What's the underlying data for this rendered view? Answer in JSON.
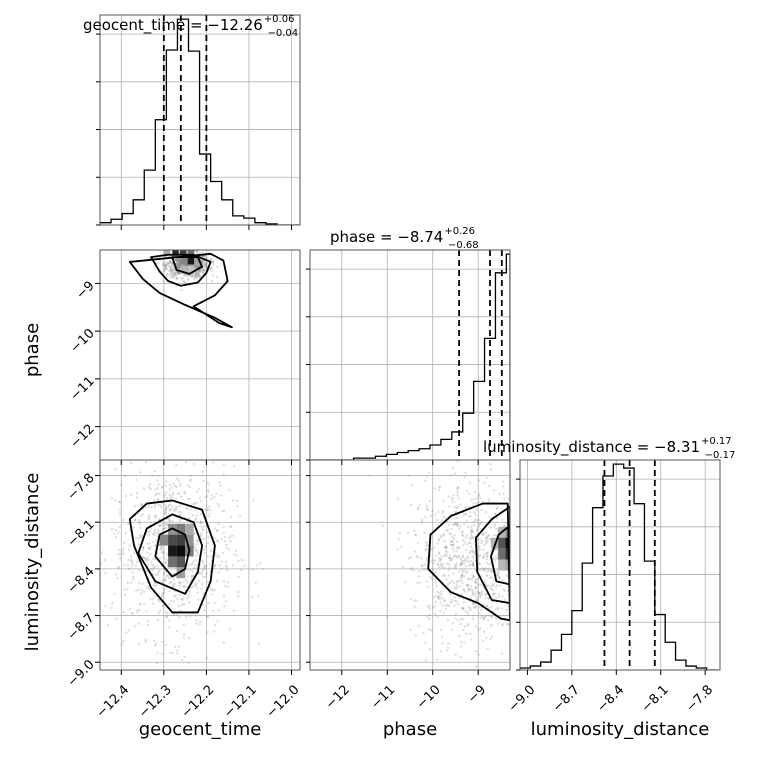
{
  "chart_data": {
    "type": "corner",
    "parameters": [
      {
        "name": "geocent_time",
        "range": [
          -12.45,
          -11.98
        ],
        "ticks": [
          -12.4,
          -12.3,
          -12.2,
          -12.1,
          -12.0
        ],
        "tick_labels": [
          "−12.4",
          "−12.3",
          "−12.2",
          "−12.1",
          "−12.0"
        ],
        "median": -12.26,
        "lower": -12.3,
        "upper": -12.2,
        "title_main": "geocent_time = −12.26",
        "title_plus": "+0.06",
        "title_minus": "−0.04"
      },
      {
        "name": "phase",
        "range": [
          -12.7,
          -8.3
        ],
        "ticks": [
          -12,
          -11,
          -10,
          -9
        ],
        "tick_labels": [
          "−12",
          "−11",
          "−10",
          "−9"
        ],
        "median": -8.74,
        "lower": -9.42,
        "upper": -8.48,
        "title_main": "phase = −8.74",
        "title_plus": "+0.26",
        "title_minus": "−0.68"
      },
      {
        "name": "luminosity_distance",
        "range": [
          -9.05,
          -7.7
        ],
        "ticks": [
          -9.0,
          -8.7,
          -8.4,
          -8.1,
          -7.8
        ],
        "tick_labels": [
          "−9.0",
          "−8.7",
          "−8.4",
          "−8.1",
          "−7.8"
        ],
        "median": -8.31,
        "lower": -8.48,
        "upper": -8.14,
        "title_main": "luminosity_distance = −8.31",
        "title_plus": "+0.17",
        "title_minus": "−0.17"
      }
    ],
    "hist_geocent_time": {
      "edges": [
        -12.45,
        -12.424,
        -12.398,
        -12.372,
        -12.346,
        -12.32,
        -12.294,
        -12.268,
        -12.242,
        -12.216,
        -12.19,
        -12.164,
        -12.138,
        -12.112,
        -12.086,
        -12.06,
        -12.034,
        -12.008,
        -11.982
      ],
      "counts": [
        2,
        5,
        10,
        22,
        48,
        92,
        153,
        180,
        152,
        62,
        38,
        22,
        8,
        6,
        2,
        1,
        0,
        0
      ]
    },
    "hist_phase": {
      "edges": [
        -12.7,
        -12.46,
        -12.22,
        -11.98,
        -11.74,
        -11.5,
        -11.26,
        -11.02,
        -10.78,
        -10.54,
        -10.3,
        -10.06,
        -9.82,
        -9.58,
        -9.34,
        -9.1,
        -8.86,
        -8.62,
        -8.38,
        -8.3
      ],
      "counts": [
        0,
        0,
        0,
        0,
        1,
        1,
        2,
        3,
        4,
        5,
        6,
        8,
        11,
        15,
        25,
        42,
        65,
        100,
        110
      ]
    },
    "hist_luminosity_distance": {
      "edges": [
        -9.05,
        -8.98,
        -8.91,
        -8.84,
        -8.77,
        -8.7,
        -8.63,
        -8.56,
        -8.49,
        -8.42,
        -8.35,
        -8.28,
        -8.21,
        -8.14,
        -8.07,
        -8.0,
        -7.93,
        -7.86,
        -7.79,
        -7.72
      ],
      "counts": [
        1,
        2,
        4,
        10,
        18,
        30,
        54,
        82,
        98,
        104,
        102,
        84,
        55,
        28,
        14,
        5,
        2,
        1,
        0
      ]
    },
    "scatter_phase_vs_geocent_time": {
      "contours": [
        [
          [
            -12.33,
            -8.45
          ],
          [
            -12.31,
            -8.75
          ],
          [
            -12.29,
            -8.95
          ],
          [
            -12.26,
            -9.05
          ],
          [
            -12.22,
            -8.98
          ],
          [
            -12.2,
            -8.78
          ],
          [
            -12.19,
            -8.55
          ],
          [
            -12.23,
            -8.4
          ],
          [
            -12.29,
            -8.4
          ]
        ],
        [
          [
            -12.38,
            -8.55
          ],
          [
            -12.35,
            -8.9
          ],
          [
            -12.31,
            -9.2
          ],
          [
            -12.25,
            -9.45
          ],
          [
            -12.18,
            -9.72
          ],
          [
            -12.14,
            -9.92
          ],
          [
            -12.17,
            -9.83
          ],
          [
            -12.23,
            -9.48
          ],
          [
            -12.18,
            -9.25
          ],
          [
            -12.15,
            -8.95
          ],
          [
            -12.16,
            -8.52
          ],
          [
            -12.19,
            -8.38
          ]
        ],
        [
          [
            -12.28,
            -8.45
          ],
          [
            -12.27,
            -8.72
          ],
          [
            -12.24,
            -8.8
          ],
          [
            -12.21,
            -8.65
          ],
          [
            -12.22,
            -8.45
          ]
        ]
      ],
      "hist2d": [
        {
          "x": -12.28,
          "y": -8.42,
          "w": 0.015,
          "h": 0.15,
          "v": 0.9
        },
        {
          "x": -12.262,
          "y": -8.42,
          "w": 0.015,
          "h": 0.15,
          "v": 0.8
        },
        {
          "x": -12.244,
          "y": -8.42,
          "w": 0.015,
          "h": 0.15,
          "v": 0.6
        },
        {
          "x": -12.26,
          "y": -8.6,
          "w": 0.015,
          "h": 0.15,
          "v": 0.5
        },
        {
          "x": -12.244,
          "y": -8.6,
          "w": 0.015,
          "h": 0.15,
          "v": 0.95
        },
        {
          "x": -12.228,
          "y": -8.6,
          "w": 0.015,
          "h": 0.15,
          "v": 0.4
        },
        {
          "x": -12.26,
          "y": -8.78,
          "w": 0.015,
          "h": 0.15,
          "v": 0.3
        },
        {
          "x": -12.3,
          "y": -8.42,
          "w": 0.015,
          "h": 0.15,
          "v": 0.35
        },
        {
          "x": -12.244,
          "y": -8.78,
          "w": 0.015,
          "h": 0.15,
          "v": 0.25
        }
      ]
    },
    "scatter_luminosity_distance_vs_geocent_time": {
      "contours": [
        [
          [
            -12.31,
            -8.18
          ],
          [
            -12.32,
            -8.32
          ],
          [
            -12.28,
            -8.45
          ],
          [
            -12.25,
            -8.4
          ],
          [
            -12.24,
            -8.28
          ],
          [
            -12.25,
            -8.18
          ],
          [
            -12.28,
            -8.14
          ]
        ],
        [
          [
            -12.34,
            -8.14
          ],
          [
            -12.36,
            -8.3
          ],
          [
            -12.32,
            -8.48
          ],
          [
            -12.25,
            -8.56
          ],
          [
            -12.22,
            -8.42
          ],
          [
            -12.21,
            -8.25
          ],
          [
            -12.23,
            -8.1
          ],
          [
            -12.28,
            -8.05
          ]
        ],
        [
          [
            -12.38,
            -8.08
          ],
          [
            -12.37,
            -8.25
          ],
          [
            -12.33,
            -8.52
          ],
          [
            -12.28,
            -8.68
          ],
          [
            -12.22,
            -8.68
          ],
          [
            -12.19,
            -8.48
          ],
          [
            -12.18,
            -8.25
          ],
          [
            -12.21,
            -8.02
          ],
          [
            -12.28,
            -7.96
          ],
          [
            -12.34,
            -7.98
          ]
        ]
      ],
      "hist2d": [
        {
          "x": -12.29,
          "y": -8.18,
          "w": 0.02,
          "h": 0.07,
          "v": 0.45
        },
        {
          "x": -12.27,
          "y": -8.18,
          "w": 0.02,
          "h": 0.07,
          "v": 0.55
        },
        {
          "x": -12.25,
          "y": -8.18,
          "w": 0.02,
          "h": 0.07,
          "v": 0.35
        },
        {
          "x": -12.31,
          "y": -8.25,
          "w": 0.02,
          "h": 0.07,
          "v": 0.5
        },
        {
          "x": -12.29,
          "y": -8.25,
          "w": 0.02,
          "h": 0.07,
          "v": 0.75
        },
        {
          "x": -12.27,
          "y": -8.25,
          "w": 0.02,
          "h": 0.07,
          "v": 0.8
        },
        {
          "x": -12.25,
          "y": -8.25,
          "w": 0.02,
          "h": 0.07,
          "v": 0.45
        },
        {
          "x": -12.29,
          "y": -8.32,
          "w": 0.02,
          "h": 0.07,
          "v": 0.95
        },
        {
          "x": -12.27,
          "y": -8.32,
          "w": 0.02,
          "h": 0.07,
          "v": 1.0
        },
        {
          "x": -12.25,
          "y": -8.32,
          "w": 0.02,
          "h": 0.07,
          "v": 0.55
        },
        {
          "x": -12.29,
          "y": -8.39,
          "w": 0.02,
          "h": 0.07,
          "v": 0.6
        },
        {
          "x": -12.27,
          "y": -8.39,
          "w": 0.02,
          "h": 0.07,
          "v": 0.7
        },
        {
          "x": -12.27,
          "y": -8.46,
          "w": 0.02,
          "h": 0.07,
          "v": 0.4
        }
      ]
    },
    "scatter_luminosity_distance_vs_phase": {
      "contours": [
        [
          [
            -8.3,
            -8.12
          ],
          [
            -8.55,
            -8.18
          ],
          [
            -8.72,
            -8.32
          ],
          [
            -8.6,
            -8.48
          ],
          [
            -8.3,
            -8.5
          ]
        ],
        [
          [
            -8.3,
            -8.0
          ],
          [
            -8.7,
            -8.08
          ],
          [
            -9.05,
            -8.2
          ],
          [
            -9.02,
            -8.42
          ],
          [
            -8.7,
            -8.6
          ],
          [
            -8.3,
            -8.62
          ]
        ],
        [
          [
            -8.35,
            -7.98
          ],
          [
            -8.9,
            -7.98
          ],
          [
            -9.6,
            -8.06
          ],
          [
            -10.05,
            -8.18
          ],
          [
            -10.1,
            -8.4
          ],
          [
            -9.6,
            -8.55
          ],
          [
            -9.0,
            -8.62
          ],
          [
            -8.5,
            -8.72
          ],
          [
            -8.3,
            -8.73
          ]
        ]
      ],
      "hist2d": [
        {
          "x": -8.56,
          "y": -8.2,
          "w": 0.16,
          "h": 0.07,
          "v": 0.3
        },
        {
          "x": -8.4,
          "y": -8.2,
          "w": 0.16,
          "h": 0.07,
          "v": 0.45
        },
        {
          "x": -8.72,
          "y": -8.27,
          "w": 0.16,
          "h": 0.07,
          "v": 0.3
        },
        {
          "x": -8.56,
          "y": -8.27,
          "w": 0.16,
          "h": 0.07,
          "v": 0.7
        },
        {
          "x": -8.4,
          "y": -8.27,
          "w": 0.16,
          "h": 0.07,
          "v": 1.0
        },
        {
          "x": -8.56,
          "y": -8.34,
          "w": 0.16,
          "h": 0.07,
          "v": 0.6
        },
        {
          "x": -8.4,
          "y": -8.34,
          "w": 0.16,
          "h": 0.07,
          "v": 0.85
        },
        {
          "x": -8.56,
          "y": -8.41,
          "w": 0.16,
          "h": 0.07,
          "v": 0.3
        },
        {
          "x": -8.4,
          "y": -8.41,
          "w": 0.16,
          "h": 0.07,
          "v": 0.4
        }
      ]
    },
    "grid": true,
    "colors": {
      "line": "#000000",
      "grid": "#b0b0b0",
      "frame": "#555555",
      "scatter": "#888888"
    }
  }
}
